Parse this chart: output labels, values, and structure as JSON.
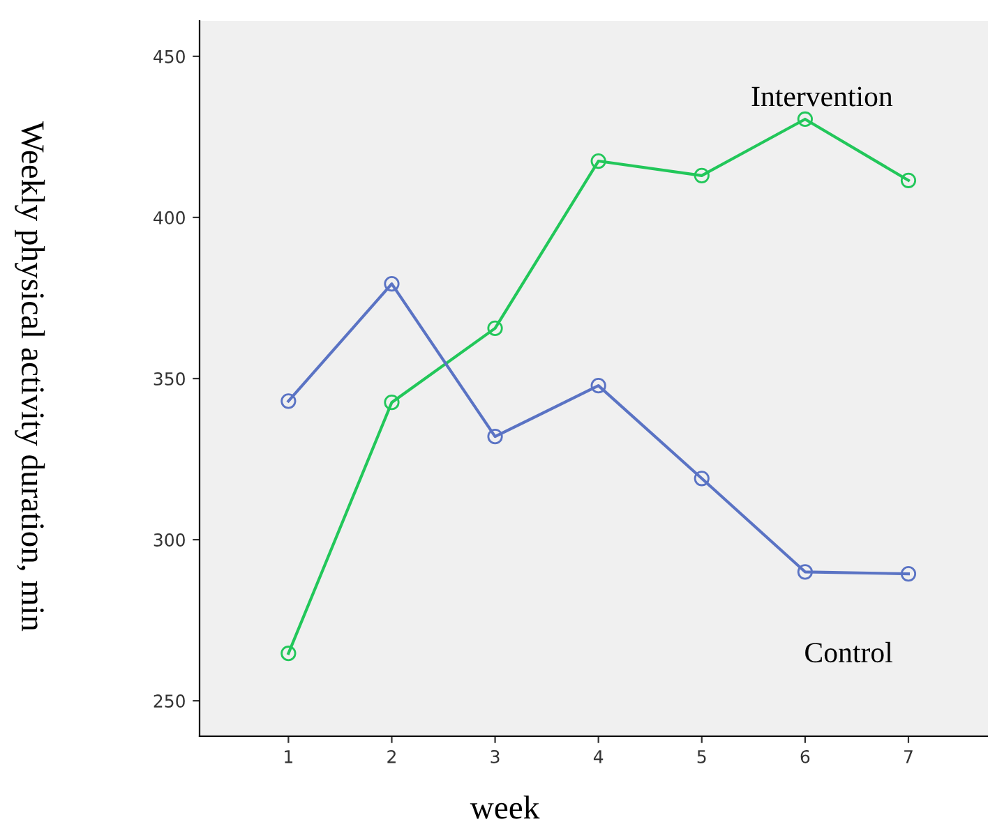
{
  "chart_data": {
    "type": "line",
    "xlabel": "week",
    "ylabel": "Weekly physical activity duration, min",
    "x": [
      1,
      2,
      3,
      4,
      5,
      6,
      7
    ],
    "series": [
      {
        "name": "Intervention",
        "color": "#22c75a",
        "values": [
          264.7,
          342.6,
          365.6,
          417.5,
          413,
          430.5,
          411.5
        ]
      },
      {
        "name": "Control",
        "color": "#5a73c4",
        "values": [
          343,
          379.4,
          332,
          347.8,
          319,
          290,
          289.4
        ]
      }
    ],
    "xlim": [
      0.14,
      7.77
    ],
    "ylim": [
      239,
      461
    ],
    "xticks": [
      1,
      2,
      3,
      4,
      5,
      6,
      7
    ],
    "yticks": [
      250,
      300,
      350,
      400,
      450
    ],
    "marker": "circle",
    "line_style": "solid",
    "grid": false,
    "legend": false
  }
}
